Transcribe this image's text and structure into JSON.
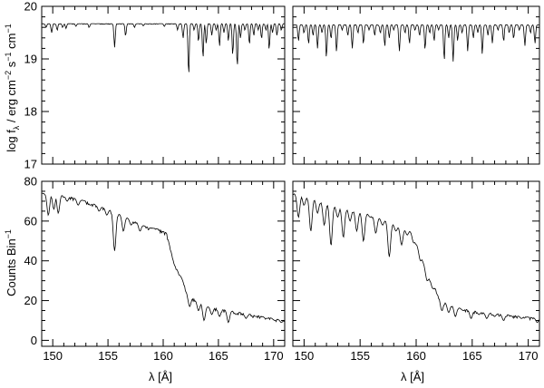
{
  "chart_data": [
    {
      "type": "line",
      "panel": "top-left",
      "ylabel_parts": {
        "a": "log f",
        "b": "λ",
        "c": " / erg cm",
        "d": "−2",
        "e": " s",
        "f": "−1",
        "g": " cm",
        "h": "−1"
      },
      "xlim": [
        149,
        171
      ],
      "ylim": [
        17,
        20
      ],
      "yticks": [
        "17",
        "18",
        "19",
        "20"
      ],
      "x_minor_step": 1,
      "y_minor_step": 0.2,
      "continuum": 19.67,
      "lines": [
        [
          149.4,
          19.6
        ],
        [
          149.9,
          19.5
        ],
        [
          150.4,
          19.55
        ],
        [
          150.9,
          19.6
        ],
        [
          151.2,
          19.58
        ],
        [
          152.1,
          19.62
        ],
        [
          153.3,
          19.6
        ],
        [
          155.6,
          19.22
        ],
        [
          156.6,
          19.45
        ],
        [
          157.4,
          19.6
        ],
        [
          158.2,
          19.63
        ],
        [
          160.1,
          19.62
        ],
        [
          161.3,
          19.55
        ],
        [
          161.8,
          19.4
        ],
        [
          162.3,
          18.75
        ],
        [
          162.8,
          19.55
        ],
        [
          163.2,
          19.35
        ],
        [
          163.6,
          19.05
        ],
        [
          163.9,
          19.3
        ],
        [
          164.4,
          19.45
        ],
        [
          164.8,
          19.55
        ],
        [
          165.1,
          19.25
        ],
        [
          165.5,
          19.5
        ],
        [
          165.9,
          19.35
        ],
        [
          166.3,
          19.1
        ],
        [
          166.7,
          18.9
        ],
        [
          167.0,
          19.4
        ],
        [
          167.4,
          19.55
        ],
        [
          167.8,
          19.3
        ],
        [
          168.2,
          19.45
        ],
        [
          168.6,
          19.55
        ],
        [
          168.9,
          19.4
        ],
        [
          169.3,
          19.55
        ],
        [
          169.6,
          19.2
        ],
        [
          169.9,
          19.5
        ],
        [
          170.3,
          19.45
        ],
        [
          170.7,
          19.55
        ]
      ],
      "show_ytick_labels": true,
      "show_xtick_labels": false
    },
    {
      "type": "line",
      "panel": "top-right",
      "xlim": [
        149,
        171
      ],
      "ylim": [
        17,
        20
      ],
      "x_minor_step": 1,
      "y_minor_step": 0.2,
      "continuum": 19.65,
      "lines": [
        [
          149.5,
          19.35
        ],
        [
          150.0,
          19.5
        ],
        [
          150.4,
          19.3
        ],
        [
          150.8,
          19.45
        ],
        [
          151.2,
          19.2
        ],
        [
          151.6,
          19.5
        ],
        [
          152.0,
          19.05
        ],
        [
          152.4,
          19.4
        ],
        [
          152.9,
          19.15
        ],
        [
          153.4,
          19.55
        ],
        [
          153.9,
          19.45
        ],
        [
          154.3,
          19.2
        ],
        [
          154.8,
          19.5
        ],
        [
          155.3,
          19.3
        ],
        [
          155.8,
          19.55
        ],
        [
          156.3,
          19.45
        ],
        [
          156.8,
          19.5
        ],
        [
          157.2,
          19.25
        ],
        [
          157.6,
          19.4
        ],
        [
          158.0,
          19.55
        ],
        [
          158.5,
          19.15
        ],
        [
          159.0,
          19.5
        ],
        [
          159.4,
          19.3
        ],
        [
          159.9,
          19.55
        ],
        [
          160.3,
          19.45
        ],
        [
          160.8,
          19.2
        ],
        [
          161.2,
          19.5
        ],
        [
          161.6,
          19.35
        ],
        [
          162.0,
          19.55
        ],
        [
          162.5,
          19.0
        ],
        [
          162.9,
          19.4
        ],
        [
          163.3,
          18.95
        ],
        [
          163.7,
          19.35
        ],
        [
          164.1,
          19.5
        ],
        [
          164.6,
          19.15
        ],
        [
          165.1,
          19.4
        ],
        [
          165.5,
          19.5
        ],
        [
          165.9,
          19.1
        ],
        [
          166.4,
          19.45
        ],
        [
          166.8,
          19.3
        ],
        [
          167.3,
          19.55
        ],
        [
          167.8,
          19.35
        ],
        [
          168.3,
          19.5
        ],
        [
          168.7,
          19.4
        ],
        [
          169.2,
          19.55
        ],
        [
          169.7,
          19.25
        ],
        [
          170.2,
          19.5
        ],
        [
          170.6,
          19.3
        ]
      ],
      "show_ytick_labels": false,
      "show_xtick_labels": false
    },
    {
      "type": "line",
      "panel": "bottom-left",
      "ylabel_parts": {
        "a": "Counts Bin",
        "b": "−1"
      },
      "xlabel": "λ [Å]",
      "xlim": [
        149,
        171
      ],
      "ylim": [
        -3,
        80
      ],
      "xticks": [
        "150",
        "155",
        "160",
        "165",
        "170"
      ],
      "yticks": [
        "0",
        "20",
        "40",
        "60",
        "80"
      ],
      "x_minor_step": 1,
      "y_minor_step": 5,
      "anchors": [
        [
          149,
          74
        ],
        [
          151,
          73
        ],
        [
          153,
          70
        ],
        [
          155,
          66
        ],
        [
          157,
          61
        ],
        [
          158.5,
          57
        ],
        [
          159.5,
          56
        ],
        [
          160.3,
          54
        ],
        [
          161,
          38
        ],
        [
          161.7,
          31
        ],
        [
          162.2,
          23
        ],
        [
          163,
          20
        ],
        [
          164,
          17
        ],
        [
          166,
          15
        ],
        [
          168,
          13
        ],
        [
          171,
          10
        ]
      ],
      "lines": [
        [
          149.6,
          63
        ],
        [
          150.1,
          66
        ],
        [
          150.5,
          64
        ],
        [
          151.3,
          70
        ],
        [
          152.3,
          68
        ],
        [
          153.4,
          68
        ],
        [
          154.2,
          65
        ],
        [
          154.9,
          63
        ],
        [
          155.6,
          45
        ],
        [
          156.4,
          55
        ],
        [
          157.1,
          58
        ],
        [
          157.9,
          55
        ],
        [
          162.4,
          17
        ],
        [
          163.2,
          15
        ],
        [
          163.7,
          10
        ],
        [
          164.4,
          13
        ],
        [
          165.1,
          12
        ],
        [
          165.9,
          9
        ],
        [
          166.6,
          13
        ],
        [
          167.5,
          11
        ],
        [
          168.4,
          12
        ],
        [
          169.3,
          11
        ],
        [
          170.1,
          10
        ],
        [
          170.7,
          9
        ]
      ],
      "show_ytick_labels": true,
      "show_xtick_labels": true
    },
    {
      "type": "line",
      "panel": "bottom-right",
      "xlabel": "λ [Å]",
      "xlim": [
        149,
        171
      ],
      "ylim": [
        -3,
        80
      ],
      "xticks": [
        "150",
        "155",
        "160",
        "165",
        "170"
      ],
      "x_minor_step": 1,
      "y_minor_step": 5,
      "anchors": [
        [
          149,
          74
        ],
        [
          151,
          71
        ],
        [
          152.5,
          68
        ],
        [
          154,
          66
        ],
        [
          155.5,
          64
        ],
        [
          157,
          61
        ],
        [
          158.5,
          57
        ],
        [
          159.5,
          55
        ],
        [
          160.3,
          45
        ],
        [
          161,
          33
        ],
        [
          161.7,
          26
        ],
        [
          162.2,
          20
        ],
        [
          163,
          18
        ],
        [
          164,
          16
        ],
        [
          166,
          14
        ],
        [
          168,
          13
        ],
        [
          171,
          11
        ]
      ],
      "lines": [
        [
          149.5,
          62
        ],
        [
          150.0,
          68
        ],
        [
          150.6,
          55
        ],
        [
          151.2,
          64
        ],
        [
          151.8,
          58
        ],
        [
          152.4,
          48
        ],
        [
          153.0,
          62
        ],
        [
          153.5,
          52
        ],
        [
          154.1,
          60
        ],
        [
          154.7,
          55
        ],
        [
          155.3,
          50
        ],
        [
          155.9,
          62
        ],
        [
          156.4,
          54
        ],
        [
          157.0,
          58
        ],
        [
          157.6,
          42
        ],
        [
          158.2,
          55
        ],
        [
          158.7,
          48
        ],
        [
          159.2,
          53
        ],
        [
          159.8,
          49
        ],
        [
          160.4,
          40
        ],
        [
          161.0,
          30
        ],
        [
          161.5,
          26
        ],
        [
          162.3,
          15
        ],
        [
          162.9,
          14
        ],
        [
          163.5,
          12
        ],
        [
          164.2,
          15
        ],
        [
          164.9,
          11
        ],
        [
          165.6,
          13
        ],
        [
          166.3,
          11
        ],
        [
          167.0,
          12
        ],
        [
          167.8,
          10
        ],
        [
          168.6,
          12
        ],
        [
          169.4,
          11
        ],
        [
          170.2,
          12
        ],
        [
          170.8,
          9
        ]
      ],
      "show_ytick_labels": false,
      "show_xtick_labels": true
    }
  ]
}
